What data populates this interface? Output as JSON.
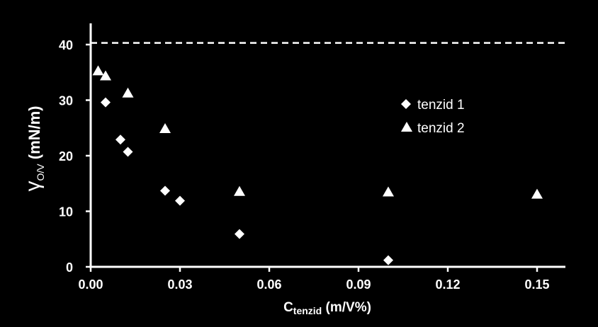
{
  "chart_data": {
    "type": "scatter",
    "xlabel": {
      "main": "C",
      "sub": "tenzid",
      "rest": " (m/V%)"
    },
    "ylabel": {
      "main": "γ",
      "sub": "O/V",
      "rest": " (mN/m)"
    },
    "xlim": [
      0,
      0.16
    ],
    "ylim": [
      0,
      44
    ],
    "x_ticks": [
      "0.00",
      "0.03",
      "0.06",
      "0.09",
      "0.12",
      "0.15"
    ],
    "x_tick_values": [
      0,
      0.03,
      0.06,
      0.09,
      0.12,
      0.15
    ],
    "y_ticks": [
      "0",
      "10",
      "20",
      "30",
      "40"
    ],
    "y_tick_values": [
      0,
      10,
      20,
      30,
      40
    ],
    "reference_line": {
      "y": 40.3,
      "style": "dashed"
    },
    "grid": false,
    "legend_position": "right",
    "series": [
      {
        "name": "tenzid 1",
        "marker": "diamond",
        "color": "#ffffff",
        "points": [
          {
            "x": 0.005,
            "y": 29.6
          },
          {
            "x": 0.01,
            "y": 22.9
          },
          {
            "x": 0.0125,
            "y": 20.7
          },
          {
            "x": 0.025,
            "y": 13.7
          },
          {
            "x": 0.03,
            "y": 11.9
          },
          {
            "x": 0.05,
            "y": 5.9
          },
          {
            "x": 0.1,
            "y": 1.2
          }
        ]
      },
      {
        "name": "tenzid 2",
        "marker": "triangle",
        "color": "#ffffff",
        "points": [
          {
            "x": 0.0025,
            "y": 35.3
          },
          {
            "x": 0.005,
            "y": 34.4
          },
          {
            "x": 0.0125,
            "y": 31.3
          },
          {
            "x": 0.025,
            "y": 24.9
          },
          {
            "x": 0.05,
            "y": 13.6
          },
          {
            "x": 0.1,
            "y": 13.5
          },
          {
            "x": 0.15,
            "y": 13.1
          }
        ]
      }
    ]
  }
}
